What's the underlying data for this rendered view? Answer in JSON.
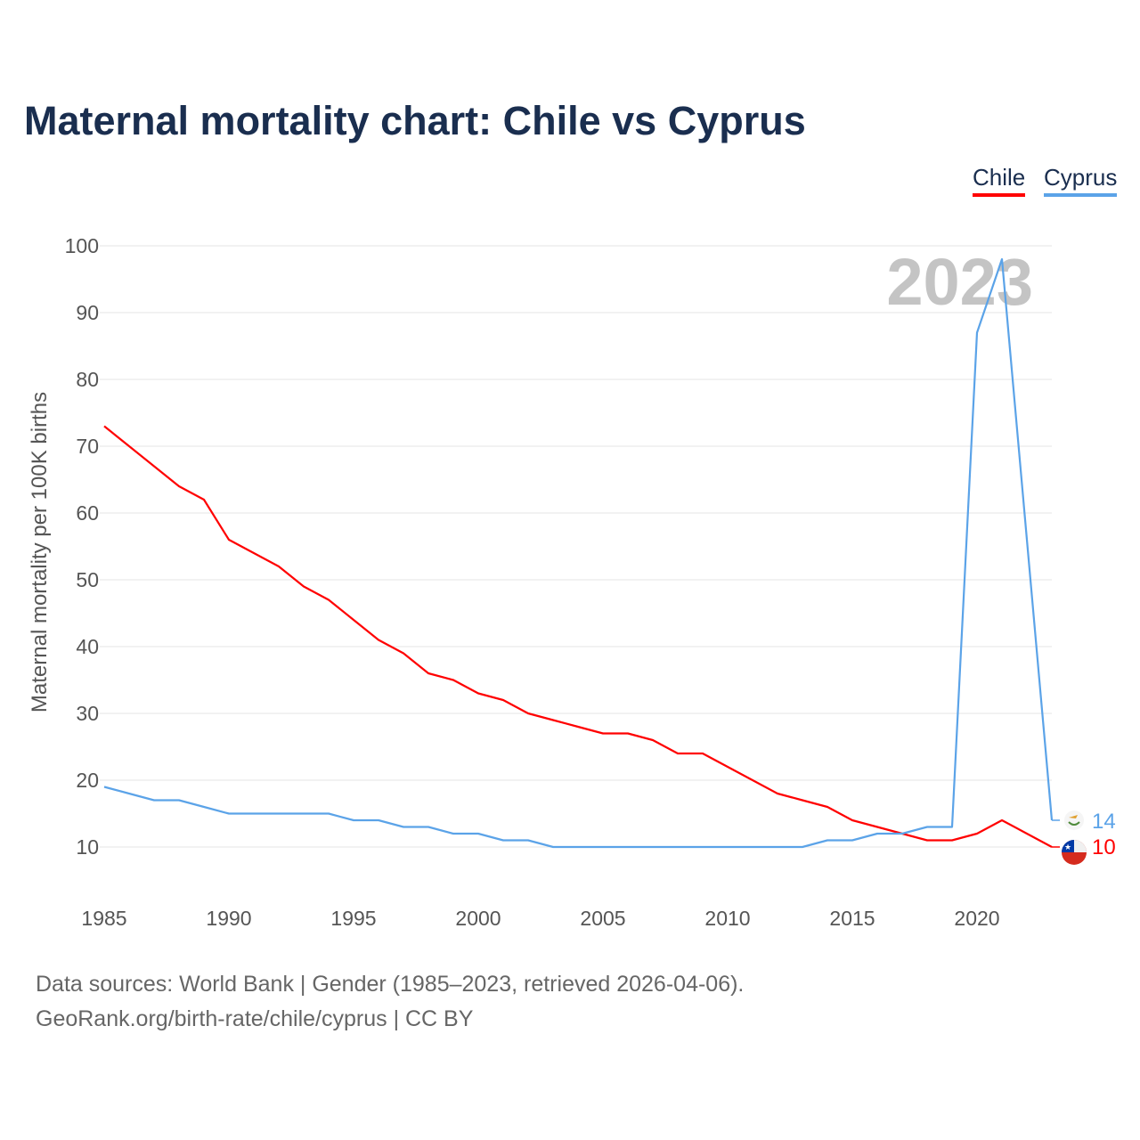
{
  "title": "Maternal mortality chart: Chile vs Cyprus",
  "footer": {
    "line1": "Data sources: World Bank | Gender (1985–2023, retrieved 2026-04-06).",
    "line2": "GeoRank.org/birth-rate/chile/cyprus | CC BY"
  },
  "chart_data": {
    "type": "line",
    "title": "Maternal mortality chart: Chile vs Cyprus",
    "xlabel": "",
    "ylabel": "Maternal mortality per 100K births",
    "year_label": "2023",
    "xlim": [
      1985,
      2023
    ],
    "ylim": [
      0,
      100
    ],
    "x_ticks": [
      1985,
      1990,
      1995,
      2000,
      2005,
      2010,
      2015,
      2020
    ],
    "y_ticks": [
      10,
      20,
      30,
      40,
      50,
      60,
      70,
      80,
      90,
      100
    ],
    "grid": true,
    "legend_placement": "top-right",
    "x": [
      1985,
      1986,
      1987,
      1988,
      1989,
      1990,
      1991,
      1992,
      1993,
      1994,
      1995,
      1996,
      1997,
      1998,
      1999,
      2000,
      2001,
      2002,
      2003,
      2004,
      2005,
      2006,
      2007,
      2008,
      2009,
      2010,
      2011,
      2012,
      2013,
      2014,
      2015,
      2016,
      2017,
      2018,
      2019,
      2020,
      2021,
      2022,
      2023
    ],
    "series": [
      {
        "name": "Chile",
        "color": "#ff0000",
        "end_label": "10",
        "values": [
          73,
          70,
          67,
          64,
          62,
          56,
          54,
          52,
          49,
          47,
          44,
          41,
          39,
          36,
          35,
          33,
          32,
          30,
          29,
          28,
          27,
          27,
          26,
          24,
          24,
          22,
          20,
          18,
          17,
          16,
          14,
          13,
          12,
          11,
          11,
          12,
          14,
          12,
          10
        ]
      },
      {
        "name": "Cyprus",
        "color": "#5ba3e8",
        "end_label": "14",
        "values": [
          19,
          18,
          17,
          17,
          16,
          15,
          15,
          15,
          15,
          15,
          14,
          14,
          13,
          13,
          12,
          12,
          11,
          11,
          10,
          10,
          10,
          10,
          10,
          10,
          10,
          10,
          10,
          10,
          10,
          11,
          11,
          12,
          12,
          13,
          13,
          87,
          98,
          56,
          14
        ]
      }
    ]
  }
}
